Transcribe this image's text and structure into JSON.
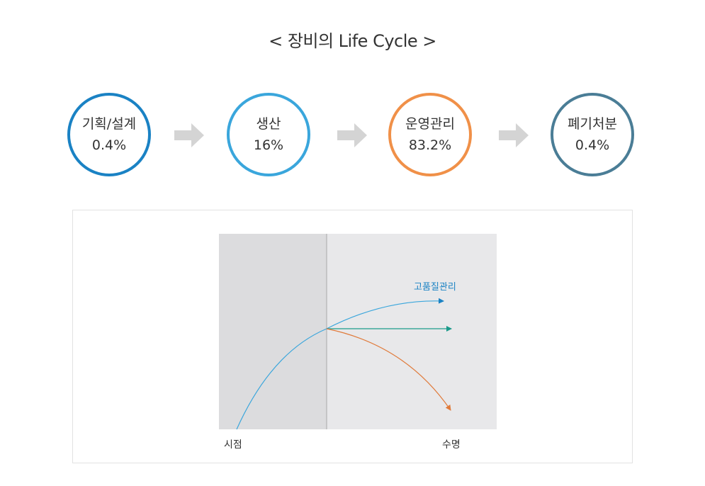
{
  "title": "< 장비의 Life Cycle >",
  "stages": [
    {
      "name": "기획/설계",
      "percent": "0.4%",
      "color": "#1a82c4"
    },
    {
      "name": "생산",
      "percent": "16%",
      "color": "#3aa6dc"
    },
    {
      "name": "운영관리",
      "percent": "83.2%",
      "color": "#f09048"
    },
    {
      "name": "폐기처분",
      "percent": "0.4%",
      "color": "#4a7d96"
    }
  ],
  "arrow_color": "#d4d4d4",
  "diagram": {
    "curve_label": "고품질관리",
    "x_start_label": "시점",
    "x_end_label": "수명",
    "colors": {
      "left_region": "#dcdcde",
      "right_region": "#e8e8ea",
      "rise_curve": "#3aa6dc",
      "high_quality": "#1a82c4",
      "flat": "#1a9a8a",
      "decline": "#e07a3a"
    }
  }
}
